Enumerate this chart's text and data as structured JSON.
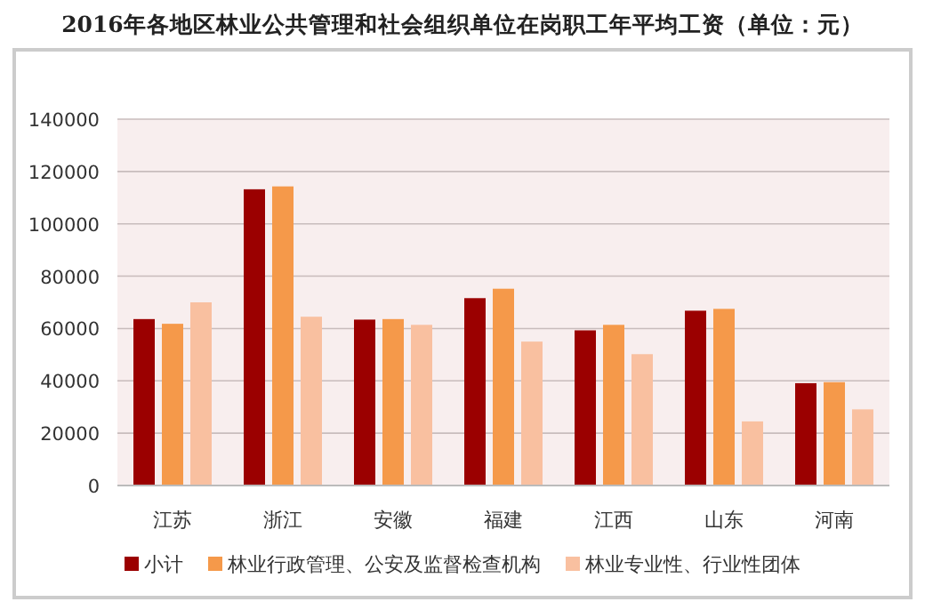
{
  "chart_data": {
    "type": "bar",
    "title": "2016年各地区林业公共管理和社会组织单位在岗职工年平均工资（单位：元）",
    "categories": [
      "江苏",
      "浙江",
      "安徽",
      "福建",
      "江西",
      "山东",
      "河南"
    ],
    "series": [
      {
        "name": "小计",
        "color": "#9b0000",
        "values": [
          63600,
          113200,
          63400,
          71600,
          59300,
          66800,
          39100
        ]
      },
      {
        "name": "林业行政管理、公安及监督检查机构",
        "color": "#f5994a",
        "values": [
          61800,
          114300,
          63600,
          75200,
          61400,
          67500,
          39500
        ]
      },
      {
        "name": "林业专业性、行业性团体",
        "color": "#f9c0a0",
        "values": [
          70000,
          64500,
          61400,
          55000,
          50200,
          24500,
          29100
        ]
      }
    ],
    "ylim": [
      0,
      140000
    ],
    "yticks": [
      0,
      20000,
      40000,
      60000,
      80000,
      100000,
      120000,
      140000
    ],
    "grid": "y",
    "legend": "bottom"
  }
}
